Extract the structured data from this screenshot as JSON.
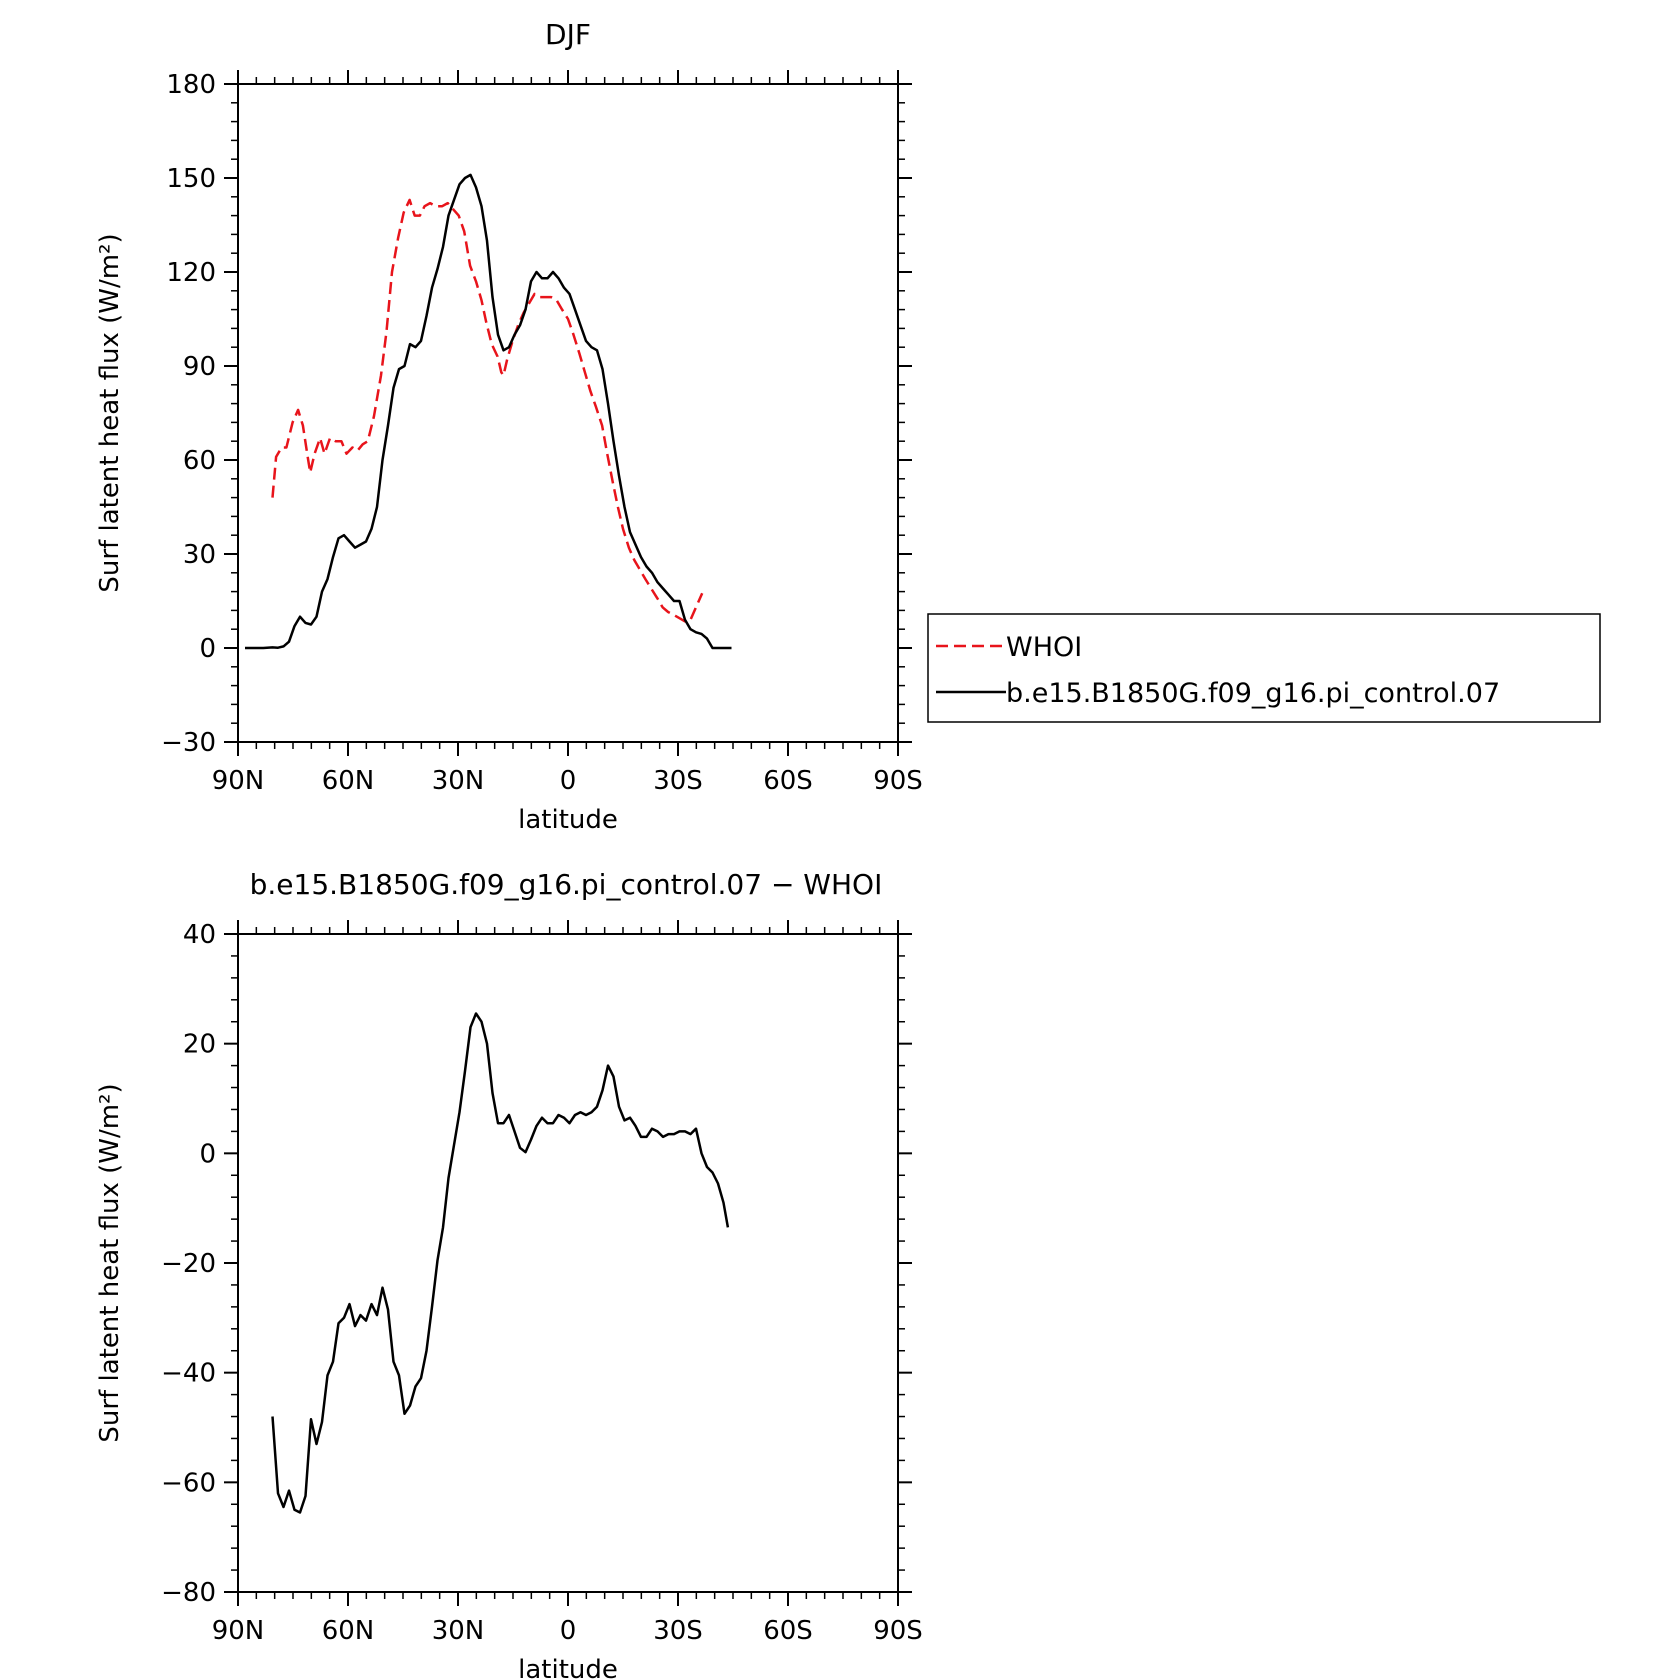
{
  "chart_data": [
    {
      "type": "line",
      "title": "DJF",
      "xlabel": "latitude",
      "ylabel": "Surf latent heat flux (W/m²)",
      "xlim": [
        -90,
        90
      ],
      "ylim": [
        -30,
        180
      ],
      "x_ticks": [
        -90,
        -60,
        -30,
        0,
        30,
        60,
        90
      ],
      "x_tick_labels": [
        "90N",
        "60N",
        "30N",
        "0",
        "30S",
        "60S",
        "90S"
      ],
      "y_ticks": [
        -30,
        0,
        30,
        60,
        90,
        120,
        150,
        180
      ],
      "y_tick_labels": [
        "−30",
        "0",
        "30",
        "60",
        "90",
        "120",
        "150",
        "180"
      ],
      "grid": false,
      "legend": {
        "placement": "right, outside plot",
        "entries": [
          "WHOI",
          "b.e15.B1850G.f09_g16.pi_control.07"
        ]
      },
      "series": [
        {
          "name": "WHOI",
          "color": "#e8141b",
          "dash": "dashed",
          "points": [
            [
              -80.6,
              48
            ],
            [
              -79.6,
              61
            ],
            [
              -78.1,
              64
            ],
            [
              -76.8,
              64
            ],
            [
              -75.1,
              72
            ],
            [
              -73.6,
              76
            ],
            [
              -72.3,
              71
            ],
            [
              -71.0,
              61
            ],
            [
              -70.3,
              56
            ],
            [
              -69.1,
              62
            ],
            [
              -67.6,
              67
            ],
            [
              -66.4,
              62
            ],
            [
              -64.9,
              67
            ],
            [
              -63.4,
              66
            ],
            [
              -61.8,
              66
            ],
            [
              -60.4,
              62
            ],
            [
              -58.8,
              64
            ],
            [
              -57.4,
              63
            ],
            [
              -56.0,
              65
            ],
            [
              -54.6,
              66
            ],
            [
              -52.9,
              74
            ],
            [
              -51.0,
              87
            ],
            [
              -49.5,
              101
            ],
            [
              -48.0,
              120
            ],
            [
              -46.3,
              131
            ],
            [
              -44.8,
              139
            ],
            [
              -43.2,
              143
            ],
            [
              -41.8,
              138
            ],
            [
              -40.4,
              138
            ],
            [
              -39.1,
              141
            ],
            [
              -37.6,
              142
            ],
            [
              -36.1,
              141
            ],
            [
              -34.3,
              141
            ],
            [
              -32.8,
              142
            ],
            [
              -31.3,
              140
            ],
            [
              -29.8,
              138
            ],
            [
              -28.3,
              133
            ],
            [
              -26.7,
              122
            ],
            [
              -25.1,
              117
            ],
            [
              -23.6,
              111
            ],
            [
              -22.3,
              104
            ],
            [
              -20.8,
              97
            ],
            [
              -19.2,
              93
            ],
            [
              -18.2,
              88
            ],
            [
              -17.6,
              87
            ],
            [
              -16.6,
              92
            ],
            [
              -15.1,
              98
            ],
            [
              -13.6,
              103
            ],
            [
              -12.1,
              107
            ],
            [
              -10.6,
              110
            ],
            [
              -9.1,
              113
            ],
            [
              -7.6,
              112
            ],
            [
              -6.1,
              112
            ],
            [
              -4.6,
              112
            ],
            [
              -3.1,
              111
            ],
            [
              -1.6,
              108
            ],
            [
              0.0,
              105
            ],
            [
              1.5,
              100
            ],
            [
              3.1,
              94
            ],
            [
              4.6,
              88
            ],
            [
              6.1,
              82
            ],
            [
              7.6,
              77
            ],
            [
              9.3,
              71
            ],
            [
              10.7,
              62
            ],
            [
              12.2,
              53
            ],
            [
              13.6,
              45
            ],
            [
              15.0,
              38
            ],
            [
              16.6,
              32
            ],
            [
              18.1,
              28
            ],
            [
              19.6,
              25
            ],
            [
              21.1,
              22
            ],
            [
              22.7,
              19
            ],
            [
              24.3,
              16
            ],
            [
              25.8,
              13
            ],
            [
              27.3,
              11.5
            ],
            [
              28.9,
              10.5
            ],
            [
              30.4,
              9.5
            ],
            [
              31.9,
              8.5
            ],
            [
              33.4,
              9
            ],
            [
              34.9,
              13
            ],
            [
              36.6,
              17.5
            ]
          ]
        },
        {
          "name": "b.e15.B1850G.f09_g16.pi_control.07",
          "color": "#000000",
          "dash": "solid",
          "points": [
            [
              -88.1,
              0
            ],
            [
              -83.1,
              0
            ],
            [
              -80.6,
              0.2
            ],
            [
              -79.1,
              0.1
            ],
            [
              -77.6,
              0.5
            ],
            [
              -76.1,
              2
            ],
            [
              -74.6,
              7
            ],
            [
              -73.1,
              10
            ],
            [
              -71.6,
              8
            ],
            [
              -70.1,
              7.5
            ],
            [
              -68.6,
              10
            ],
            [
              -67.1,
              18
            ],
            [
              -65.6,
              22
            ],
            [
              -64.1,
              29
            ],
            [
              -62.6,
              35
            ],
            [
              -61.1,
              36
            ],
            [
              -59.6,
              34
            ],
            [
              -58.1,
              32
            ],
            [
              -56.6,
              33
            ],
            [
              -55.1,
              34
            ],
            [
              -53.6,
              38
            ],
            [
              -52.1,
              45
            ],
            [
              -50.6,
              60
            ],
            [
              -49.1,
              71
            ],
            [
              -47.6,
              83
            ],
            [
              -46.1,
              89
            ],
            [
              -44.6,
              90
            ],
            [
              -43.1,
              97
            ],
            [
              -41.6,
              96
            ],
            [
              -40.1,
              98
            ],
            [
              -38.6,
              106
            ],
            [
              -37.1,
              115
            ],
            [
              -35.6,
              121
            ],
            [
              -34.1,
              128
            ],
            [
              -32.6,
              138
            ],
            [
              -31.1,
              143
            ],
            [
              -29.6,
              148
            ],
            [
              -28.1,
              150
            ],
            [
              -26.6,
              151
            ],
            [
              -25.1,
              147
            ],
            [
              -23.6,
              141
            ],
            [
              -22.1,
              130
            ],
            [
              -20.6,
              112
            ],
            [
              -19.1,
              100
            ],
            [
              -17.6,
              95
            ],
            [
              -16.1,
              96
            ],
            [
              -14.6,
              100
            ],
            [
              -13.1,
              103
            ],
            [
              -11.6,
              108
            ],
            [
              -10.1,
              117
            ],
            [
              -8.6,
              120
            ],
            [
              -7.1,
              118
            ],
            [
              -5.6,
              118
            ],
            [
              -4.1,
              120
            ],
            [
              -2.6,
              118
            ],
            [
              -1.1,
              115
            ],
            [
              0.4,
              113
            ],
            [
              1.9,
              108
            ],
            [
              3.4,
              103
            ],
            [
              4.9,
              98
            ],
            [
              6.4,
              96
            ],
            [
              7.9,
              95
            ],
            [
              9.4,
              89
            ],
            [
              10.9,
              78
            ],
            [
              12.4,
              66
            ],
            [
              13.9,
              55
            ],
            [
              15.4,
              45
            ],
            [
              16.9,
              37
            ],
            [
              18.4,
              33
            ],
            [
              19.9,
              29
            ],
            [
              21.4,
              26
            ],
            [
              22.9,
              24
            ],
            [
              24.4,
              21
            ],
            [
              25.9,
              19
            ],
            [
              27.4,
              17
            ],
            [
              28.9,
              15
            ],
            [
              30.4,
              15
            ],
            [
              31.9,
              9
            ],
            [
              33.4,
              6
            ],
            [
              34.9,
              5
            ],
            [
              36.4,
              4.5
            ],
            [
              37.9,
              3
            ],
            [
              39.4,
              0
            ],
            [
              43.1,
              0
            ],
            [
              44.6,
              0
            ]
          ]
        }
      ]
    },
    {
      "type": "line",
      "title": "b.e15.B1850G.f09_g16.pi_control.07 − WHOI",
      "xlabel": "latitude",
      "ylabel": "Surf latent heat flux (W/m²)",
      "xlim": [
        -90,
        90
      ],
      "ylim": [
        -80,
        40
      ],
      "x_ticks": [
        -90,
        -60,
        -30,
        0,
        30,
        60,
        90
      ],
      "x_tick_labels": [
        "90N",
        "60N",
        "30N",
        "0",
        "30S",
        "60S",
        "90S"
      ],
      "y_ticks": [
        -80,
        -60,
        -40,
        -20,
        0,
        20,
        40
      ],
      "y_tick_labels": [
        "−80",
        "−60",
        "−40",
        "−20",
        "0",
        "20",
        "40"
      ],
      "grid": false,
      "series": [
        {
          "color": "#000000",
          "dash": "solid",
          "points": [
            [
              -80.6,
              -48
            ],
            [
              -79.1,
              -62
            ],
            [
              -77.6,
              -64.5
            ],
            [
              -76.1,
              -61.5
            ],
            [
              -74.6,
              -65
            ],
            [
              -73.1,
              -65.5
            ],
            [
              -71.6,
              -62.5
            ],
            [
              -70.1,
              -48.5
            ],
            [
              -68.6,
              -53
            ],
            [
              -67.1,
              -49
            ],
            [
              -65.6,
              -40.5
            ],
            [
              -64.1,
              -38
            ],
            [
              -62.6,
              -31
            ],
            [
              -61.1,
              -30
            ],
            [
              -59.6,
              -27.5
            ],
            [
              -58.1,
              -31.5
            ],
            [
              -56.6,
              -29.5
            ],
            [
              -55.1,
              -30.5
            ],
            [
              -53.6,
              -27.5
            ],
            [
              -52.1,
              -29.5
            ],
            [
              -50.6,
              -24.5
            ],
            [
              -49.1,
              -28.5
            ],
            [
              -47.6,
              -38
            ],
            [
              -46.1,
              -40.5
            ],
            [
              -44.6,
              -47.5
            ],
            [
              -43.1,
              -46
            ],
            [
              -41.6,
              -42.5
            ],
            [
              -40.1,
              -41
            ],
            [
              -38.6,
              -36
            ],
            [
              -37.1,
              -28
            ],
            [
              -35.6,
              -19.5
            ],
            [
              -34.1,
              -13.5
            ],
            [
              -32.6,
              -4.5
            ],
            [
              -31.1,
              1.5
            ],
            [
              -29.6,
              7.5
            ],
            [
              -28.1,
              15
            ],
            [
              -26.6,
              23
            ],
            [
              -25.1,
              25.5
            ],
            [
              -23.6,
              24
            ],
            [
              -22.1,
              20
            ],
            [
              -20.6,
              11
            ],
            [
              -19.1,
              5.5
            ],
            [
              -17.6,
              5.5
            ],
            [
              -16.1,
              7
            ],
            [
              -14.6,
              4
            ],
            [
              -13.1,
              1
            ],
            [
              -11.6,
              0.2
            ],
            [
              -10.1,
              2.5
            ],
            [
              -8.6,
              5
            ],
            [
              -7.1,
              6.5
            ],
            [
              -5.6,
              5.5
            ],
            [
              -4.1,
              5.5
            ],
            [
              -2.6,
              7
            ],
            [
              -1.1,
              6.5
            ],
            [
              0.4,
              5.5
            ],
            [
              1.9,
              7
            ],
            [
              3.4,
              7.5
            ],
            [
              4.9,
              7
            ],
            [
              6.4,
              7.5
            ],
            [
              7.9,
              8.5
            ],
            [
              9.4,
              11.5
            ],
            [
              10.9,
              16
            ],
            [
              12.4,
              14
            ],
            [
              13.9,
              8.5
            ],
            [
              15.4,
              6
            ],
            [
              16.9,
              6.5
            ],
            [
              18.4,
              5
            ],
            [
              19.9,
              3
            ],
            [
              21.4,
              3
            ],
            [
              22.9,
              4.5
            ],
            [
              24.4,
              4
            ],
            [
              25.9,
              3
            ],
            [
              27.4,
              3.5
            ],
            [
              28.9,
              3.5
            ],
            [
              30.4,
              4
            ],
            [
              31.9,
              4
            ],
            [
              33.4,
              3.5
            ],
            [
              34.9,
              4.5
            ],
            [
              36.4,
              0
            ],
            [
              37.9,
              -2.5
            ],
            [
              39.4,
              -3.5
            ],
            [
              40.9,
              -5.5
            ],
            [
              42.4,
              -9
            ],
            [
              43.6,
              -13.5
            ]
          ]
        }
      ]
    }
  ]
}
